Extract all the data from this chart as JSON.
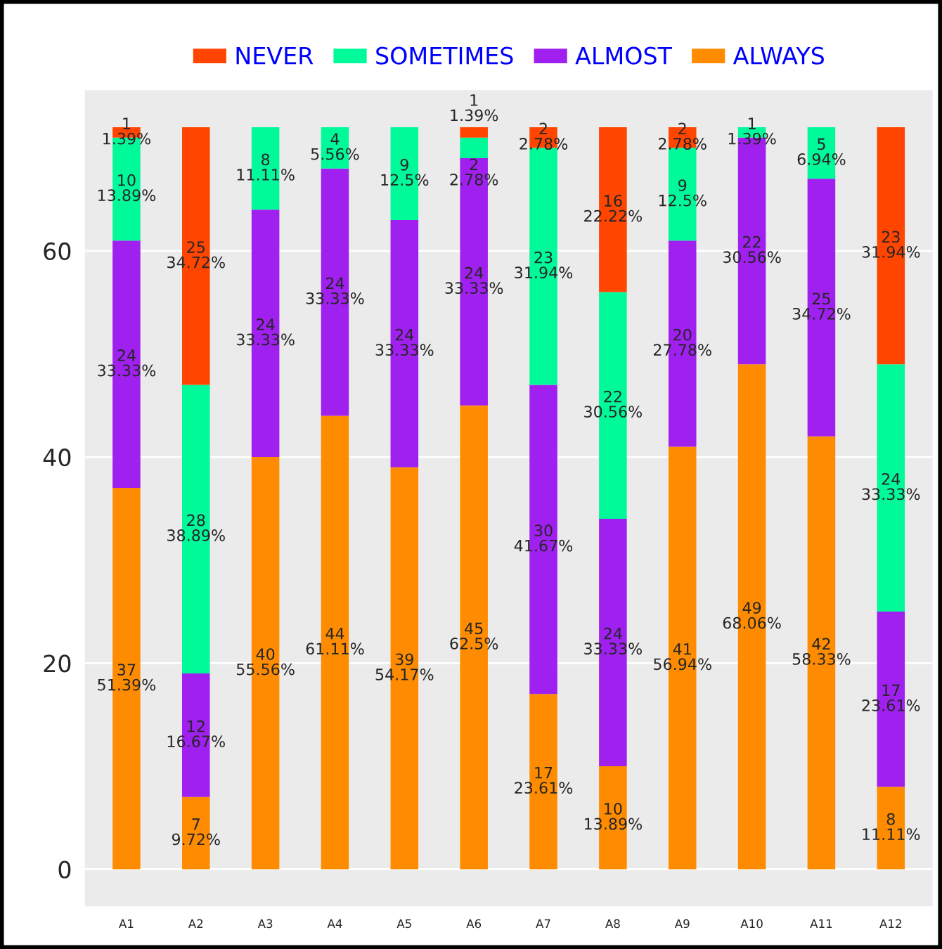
{
  "chart_data": {
    "type": "bar",
    "stacked": true,
    "categories": [
      "A1",
      "A2",
      "A3",
      "A4",
      "A5",
      "A6",
      "A7",
      "A8",
      "A9",
      "A10",
      "A11",
      "A12"
    ],
    "series": [
      {
        "name": "ALWAYS",
        "color": "#ff8c00",
        "values": [
          37,
          7,
          40,
          44,
          39,
          45,
          17,
          10,
          41,
          49,
          42,
          8
        ],
        "value_labels": [
          "37\n51.39%",
          "7\n9.72%",
          "40\n55.56%",
          "44\n61.11%",
          "39\n54.17%",
          "45\n62.5%",
          "17\n23.61%",
          "10\n13.89%",
          "41\n56.94%",
          "49\n68.06%",
          "42\n58.33%",
          "8\n11.11%"
        ]
      },
      {
        "name": "ALMOST",
        "color": "#a020f0",
        "values": [
          24,
          12,
          24,
          24,
          24,
          24,
          30,
          24,
          20,
          22,
          25,
          17
        ],
        "value_labels": [
          "24\n33.33%",
          "12\n16.67%",
          "24\n33.33%",
          "24\n33.33%",
          "24\n33.33%",
          "24\n33.33%",
          "30\n41.67%",
          "24\n33.33%",
          "20\n27.78%",
          "22\n30.56%",
          "25\n34.72%",
          "17\n23.61%"
        ]
      },
      {
        "name": "SOMETIMES",
        "color": "#00fa9a",
        "values": [
          10,
          28,
          8,
          4,
          9,
          2,
          23,
          22,
          9,
          1,
          5,
          24
        ],
        "value_labels": [
          "10\n13.89%",
          "28\n38.89%",
          "8\n11.11%",
          "4\n5.56%",
          "9\n12.5%",
          "2\n2.78%",
          "23\n31.94%",
          "22\n30.56%",
          "9\n12.5%",
          "1\n1.39%",
          "5\n6.94%",
          "24\n33.33%"
        ]
      },
      {
        "name": "NEVER",
        "color": "#ff4500",
        "values": [
          1,
          25,
          null,
          null,
          null,
          1,
          2,
          16,
          2,
          null,
          null,
          23
        ],
        "value_labels": [
          "1\n1.39%",
          "25\n34.72%",
          null,
          null,
          null,
          "1\n1.39%",
          "2\n2.78%",
          "16\n22.22%",
          "2\n2.78%",
          null,
          null,
          "23\n31.94%"
        ]
      }
    ],
    "ylim": [
      -3.6,
      75.6
    ],
    "yticks": [
      0,
      20,
      40,
      60
    ],
    "grid": true,
    "legend": "top"
  }
}
